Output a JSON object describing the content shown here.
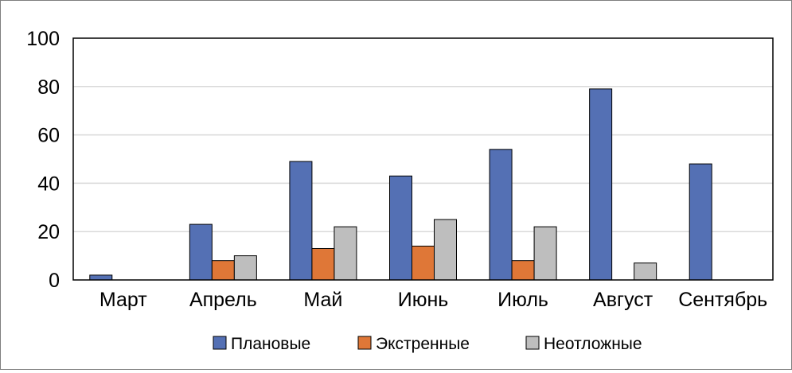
{
  "chart_data": {
    "type": "bar",
    "title": "",
    "xlabel": "",
    "ylabel": "",
    "categories": [
      "Март",
      "Апрель",
      "Май",
      "Июнь",
      "Июль",
      "Август",
      "Сентябрь"
    ],
    "ylim": [
      0,
      100
    ],
    "yticks": [
      "0",
      "20",
      "40",
      "60",
      "80",
      "100"
    ],
    "grid": true,
    "legend_position": "bottom",
    "series": [
      {
        "name": "Плановые",
        "color": "#5470b4",
        "values": [
          2,
          23,
          49,
          43,
          54,
          79,
          48
        ]
      },
      {
        "name": "Экстренные",
        "color": "#df7737",
        "values": [
          0,
          8,
          13,
          14,
          8,
          0,
          0
        ]
      },
      {
        "name": "Неотложные",
        "color": "#bebebe",
        "values": [
          0,
          10,
          22,
          25,
          22,
          7,
          0
        ]
      }
    ]
  }
}
